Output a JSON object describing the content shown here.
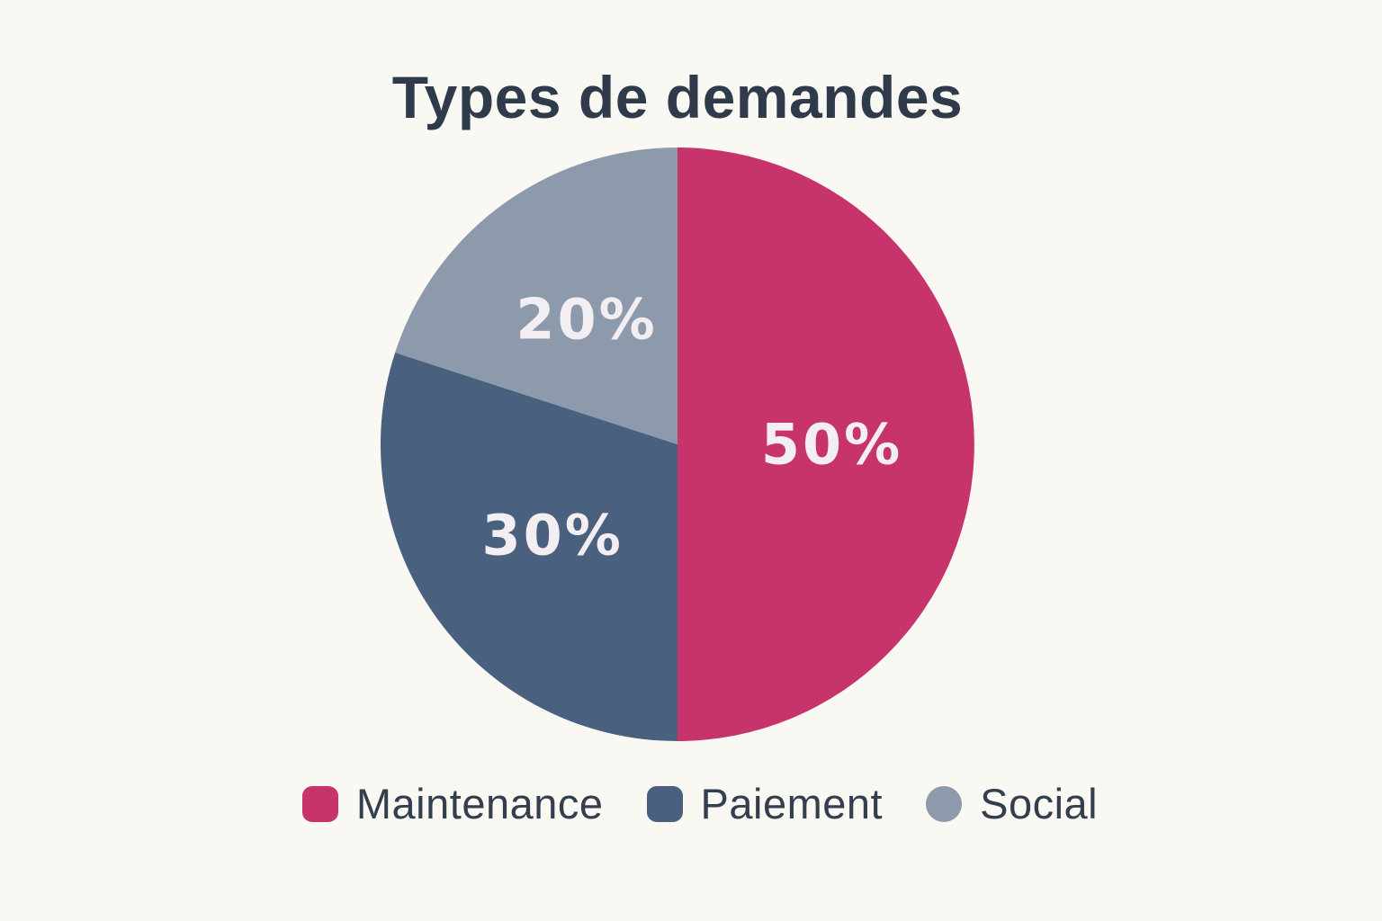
{
  "chart_data": {
    "type": "pie",
    "title": "Types de demandes",
    "slices": [
      {
        "label": "Maintenance",
        "value": 50,
        "label_text": "50%",
        "color": "#C7346B",
        "marker_shape": "rounded-square"
      },
      {
        "label": "Paiement",
        "value": 30,
        "label_text": "30%",
        "color": "#49607E",
        "marker_shape": "rounded-square"
      },
      {
        "label": "Social",
        "value": 20,
        "label_text": "20%",
        "color": "#8C9AAB",
        "marker_shape": "circle"
      }
    ],
    "start_angle_deg": 0,
    "direction": "clockwise",
    "label_radius_fraction": 0.52,
    "value_label_color": "#F3EEF2",
    "legend_position": "bottom",
    "background_color": "#FAF8F3",
    "title_color": "#2F3A4B",
    "legend_text_color": "#333E4E"
  }
}
